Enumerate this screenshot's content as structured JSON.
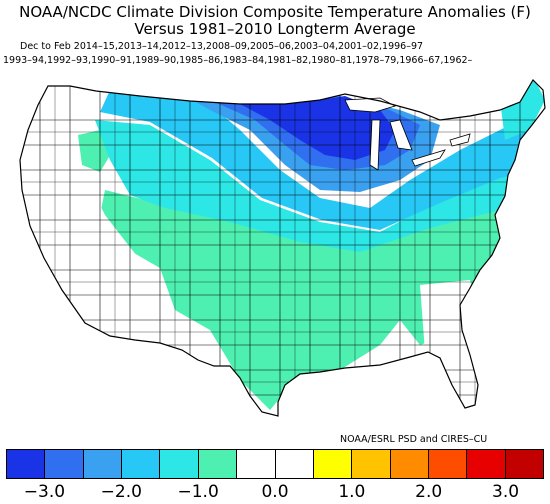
{
  "title_line1": "NOAA/NCDC Climate Division Composite Temperature Anomalies (F)",
  "title_line2": "Versus 1981–2010 Longterm Average",
  "subtitle_line1": "Dec to Feb  2014–15,2013–14,2012–13,2008–09,2005–06,2003–04,2001–02,1996–97",
  "subtitle_line2": "1993–94,1992–93,1990–91,1989–90,1985–86,1983–84,1981–82,1980–81,1978–79,1966–67,1962–",
  "credit": "NOAA/ESRL PSD and CIRES–CU",
  "colorbar": {
    "colors": [
      "#1a33e6",
      "#2f6ff0",
      "#3aa0f0",
      "#27c8f5",
      "#2de6e6",
      "#4df0b0",
      "#ffffff",
      "#ffffff",
      "#ffff00",
      "#ffc300",
      "#ff8c00",
      "#ff4d00",
      "#e60000",
      "#c20000"
    ],
    "tick_labels": [
      "−3.0",
      "−2.0",
      "−1.0",
      "0.0",
      "1.0",
      "2.0",
      "3.0"
    ]
  },
  "map_colors": {
    "deep_blue": "#1a33e6",
    "blue": "#2f6ff0",
    "mid_blue": "#3aa0f0",
    "light_blue": "#27c8f5",
    "cyan": "#2de6e6",
    "aqua": "#4df0b0",
    "neutral": "#ffffff"
  }
}
